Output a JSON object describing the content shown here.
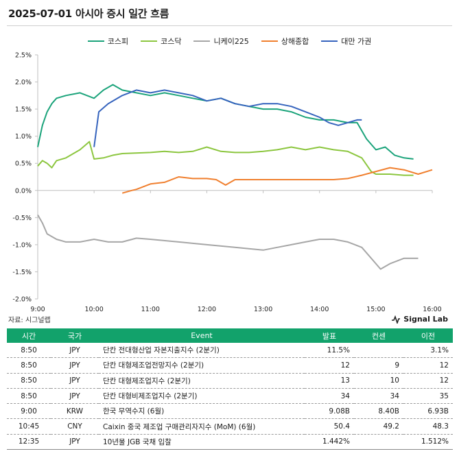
{
  "title": "2025-07-01 아시아 증시 일간 흐름",
  "source_note": "자료: 시그널랩",
  "brand": "Signal Lab",
  "chart_data": {
    "type": "line",
    "x_ticks": [
      "9:00",
      "10:00",
      "11:00",
      "12:00",
      "13:00",
      "14:00",
      "15:00",
      "16:00"
    ],
    "y_ticks": [
      "2.5%",
      "2.0%",
      "1.5%",
      "1.0%",
      "0.5%",
      "0.0%",
      "-0.5%",
      "-1.0%",
      "-1.5%",
      "-2.0%"
    ],
    "x_range": [
      "9:00",
      "16:00"
    ],
    "ylim": [
      -2.0,
      2.5
    ],
    "y_unit": "%",
    "grid": false,
    "legend_position": "top-center",
    "series": [
      {
        "name": "코스피",
        "color": "#1aa37a",
        "points": [
          [
            "9:00",
            0.8
          ],
          [
            "9:05",
            1.2
          ],
          [
            "9:10",
            1.45
          ],
          [
            "9:15",
            1.6
          ],
          [
            "9:20",
            1.7
          ],
          [
            "9:30",
            1.75
          ],
          [
            "9:45",
            1.8
          ],
          [
            "10:00",
            1.7
          ],
          [
            "10:10",
            1.85
          ],
          [
            "10:20",
            1.95
          ],
          [
            "10:30",
            1.85
          ],
          [
            "10:45",
            1.8
          ],
          [
            "11:00",
            1.75
          ],
          [
            "11:15",
            1.8
          ],
          [
            "11:30",
            1.75
          ],
          [
            "11:45",
            1.7
          ],
          [
            "12:00",
            1.65
          ],
          [
            "12:15",
            1.7
          ],
          [
            "12:30",
            1.6
          ],
          [
            "12:45",
            1.55
          ],
          [
            "13:00",
            1.5
          ],
          [
            "13:15",
            1.5
          ],
          [
            "13:30",
            1.45
          ],
          [
            "13:45",
            1.35
          ],
          [
            "14:00",
            1.3
          ],
          [
            "14:15",
            1.3
          ],
          [
            "14:30",
            1.25
          ],
          [
            "14:40",
            1.25
          ],
          [
            "14:50",
            0.95
          ],
          [
            "15:00",
            0.75
          ],
          [
            "15:10",
            0.8
          ],
          [
            "15:20",
            0.65
          ],
          [
            "15:30",
            0.6
          ],
          [
            "15:40",
            0.58
          ]
        ]
      },
      {
        "name": "코스닥",
        "color": "#8cc63f",
        "points": [
          [
            "9:00",
            0.45
          ],
          [
            "9:05",
            0.55
          ],
          [
            "9:10",
            0.5
          ],
          [
            "9:15",
            0.42
          ],
          [
            "9:20",
            0.55
          ],
          [
            "9:30",
            0.6
          ],
          [
            "9:45",
            0.75
          ],
          [
            "9:55",
            0.9
          ],
          [
            "10:00",
            0.58
          ],
          [
            "10:10",
            0.6
          ],
          [
            "10:20",
            0.65
          ],
          [
            "10:30",
            0.68
          ],
          [
            "11:00",
            0.7
          ],
          [
            "11:15",
            0.72
          ],
          [
            "11:30",
            0.7
          ],
          [
            "11:45",
            0.72
          ],
          [
            "12:00",
            0.8
          ],
          [
            "12:15",
            0.72
          ],
          [
            "12:30",
            0.7
          ],
          [
            "12:45",
            0.7
          ],
          [
            "13:00",
            0.72
          ],
          [
            "13:15",
            0.75
          ],
          [
            "13:30",
            0.8
          ],
          [
            "13:45",
            0.75
          ],
          [
            "14:00",
            0.8
          ],
          [
            "14:15",
            0.75
          ],
          [
            "14:30",
            0.72
          ],
          [
            "14:45",
            0.6
          ],
          [
            "14:55",
            0.35
          ],
          [
            "15:00",
            0.3
          ],
          [
            "15:15",
            0.3
          ],
          [
            "15:30",
            0.28
          ],
          [
            "15:40",
            0.28
          ]
        ]
      },
      {
        "name": "니케이225",
        "color": "#a6a6a6",
        "points": [
          [
            "9:00",
            -0.45
          ],
          [
            "9:05",
            -0.6
          ],
          [
            "9:10",
            -0.8
          ],
          [
            "9:20",
            -0.9
          ],
          [
            "9:30",
            -0.95
          ],
          [
            "9:45",
            -0.95
          ],
          [
            "10:00",
            -0.9
          ],
          [
            "10:15",
            -0.95
          ],
          [
            "10:30",
            -0.95
          ],
          [
            "10:45",
            -0.88
          ],
          [
            "11:00",
            -0.9
          ],
          [
            "11:30",
            -0.95
          ],
          [
            "12:00",
            -1.0
          ],
          [
            "12:30",
            -1.05
          ],
          [
            "13:00",
            -1.1
          ],
          [
            "13:15",
            -1.05
          ],
          [
            "13:30",
            -1.0
          ],
          [
            "13:45",
            -0.95
          ],
          [
            "14:00",
            -0.9
          ],
          [
            "14:15",
            -0.9
          ],
          [
            "14:30",
            -0.95
          ],
          [
            "14:45",
            -1.05
          ],
          [
            "15:00",
            -1.35
          ],
          [
            "15:05",
            -1.45
          ],
          [
            "15:15",
            -1.35
          ],
          [
            "15:30",
            -1.25
          ],
          [
            "15:45",
            -1.25
          ]
        ]
      },
      {
        "name": "상해종합",
        "color": "#f07f2e",
        "points": [
          [
            "10:30",
            -0.05
          ],
          [
            "10:40",
            0.0
          ],
          [
            "10:45",
            0.02
          ],
          [
            "11:00",
            0.12
          ],
          [
            "11:15",
            0.15
          ],
          [
            "11:30",
            0.25
          ],
          [
            "11:45",
            0.22
          ],
          [
            "12:00",
            0.22
          ],
          [
            "12:10",
            0.2
          ],
          [
            "12:20",
            0.1
          ],
          [
            "12:30",
            0.2
          ],
          [
            "13:00",
            0.2
          ],
          [
            "13:30",
            0.2
          ],
          [
            "14:00",
            0.2
          ],
          [
            "14:15",
            0.2
          ],
          [
            "14:30",
            0.22
          ],
          [
            "14:45",
            0.28
          ],
          [
            "15:00",
            0.35
          ],
          [
            "15:15",
            0.42
          ],
          [
            "15:30",
            0.38
          ],
          [
            "15:45",
            0.3
          ],
          [
            "16:00",
            0.38
          ]
        ]
      },
      {
        "name": "대만 가권",
        "color": "#3563bd",
        "points": [
          [
            "10:00",
            0.8
          ],
          [
            "10:05",
            1.45
          ],
          [
            "10:15",
            1.6
          ],
          [
            "10:30",
            1.75
          ],
          [
            "10:45",
            1.85
          ],
          [
            "11:00",
            1.8
          ],
          [
            "11:15",
            1.85
          ],
          [
            "11:30",
            1.8
          ],
          [
            "11:45",
            1.75
          ],
          [
            "12:00",
            1.65
          ],
          [
            "12:15",
            1.7
          ],
          [
            "12:30",
            1.6
          ],
          [
            "12:45",
            1.55
          ],
          [
            "13:00",
            1.6
          ],
          [
            "13:15",
            1.6
          ],
          [
            "13:30",
            1.55
          ],
          [
            "13:45",
            1.45
          ],
          [
            "14:00",
            1.35
          ],
          [
            "14:10",
            1.25
          ],
          [
            "14:20",
            1.2
          ],
          [
            "14:30",
            1.25
          ],
          [
            "14:40",
            1.3
          ],
          [
            "14:45",
            1.3
          ]
        ]
      }
    ]
  },
  "events_table": {
    "headers": {
      "time": "시간",
      "country": "국가",
      "event": "Event",
      "actual": "발표",
      "consensus": "컨센",
      "previous": "이전"
    },
    "rows": [
      {
        "time": "8:50",
        "country": "JPY",
        "event": "단칸 전대형산업 자본지출지수 (2분기)",
        "actual": "11.5%",
        "consensus": "",
        "previous": "3.1%"
      },
      {
        "time": "8:50",
        "country": "JPY",
        "event": "단칸 대형제조업전망지수 (2분기)",
        "actual": "12",
        "consensus": "9",
        "previous": "12"
      },
      {
        "time": "8:50",
        "country": "JPY",
        "event": "단칸 대형제조업지수 (2분기)",
        "actual": "13",
        "consensus": "10",
        "previous": "12"
      },
      {
        "time": "8:50",
        "country": "JPY",
        "event": "단칸 대형비제조업지수 (2분기)",
        "actual": "34",
        "consensus": "34",
        "previous": "35"
      },
      {
        "time": "9:00",
        "country": "KRW",
        "event": "한국 무역수지 (6월)",
        "actual": "9.08B",
        "consensus": "8.40B",
        "previous": "6.93B"
      },
      {
        "time": "10:45",
        "country": "CNY",
        "event": "Caixin 중국 제조업 구매관리자지수 (MoM) (6월)",
        "actual": "50.4",
        "consensus": "49.2",
        "previous": "48.3"
      },
      {
        "time": "12:35",
        "country": "JPY",
        "event": "10년물 JGB 국채 입찰",
        "actual": "1.442%",
        "consensus": "",
        "previous": "1.512%"
      }
    ]
  }
}
